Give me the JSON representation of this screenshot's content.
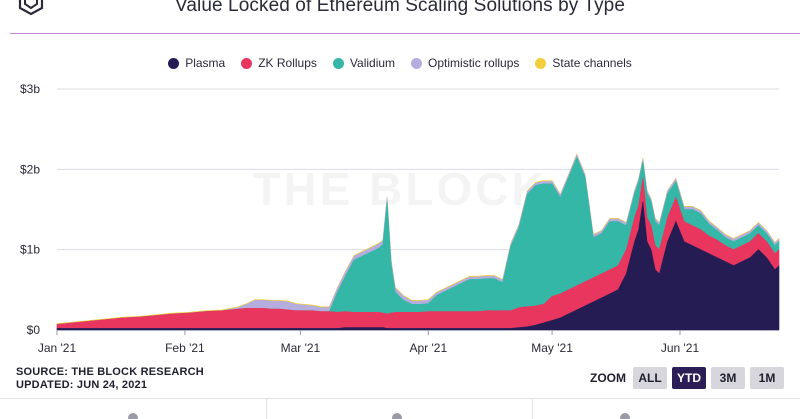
{
  "header": {
    "title": "Value Locked of Ethereum Scaling Solutions by Type",
    "logo_icon": "the-block-cube-icon"
  },
  "watermark": "THE BLOCK",
  "source": {
    "line1": "SOURCE: THE BLOCK RESEARCH",
    "line2": "UPDATED: JUN 24, 2021"
  },
  "zoom": {
    "label": "ZOOM",
    "buttons": [
      {
        "label": "ALL",
        "active": false
      },
      {
        "label": "YTD",
        "active": true
      },
      {
        "label": "3M",
        "active": false
      },
      {
        "label": "1M",
        "active": false
      }
    ]
  },
  "chart_data": {
    "type": "area",
    "stacked": true,
    "title": "Value Locked of Ethereum Scaling Solutions by Type",
    "xlabel": "",
    "ylabel": "",
    "ylim": [
      0,
      3
    ],
    "y_unit": "billion USD",
    "yticks": [
      0,
      1,
      2,
      3
    ],
    "ytick_labels": [
      "$0",
      "$1b",
      "$2b",
      "$3b"
    ],
    "xlim": [
      0,
      175
    ],
    "x_ticks": [
      {
        "label": "Jan '21",
        "day": 0
      },
      {
        "label": "Feb '21",
        "day": 31
      },
      {
        "label": "Mar '21",
        "day": 59
      },
      {
        "label": "Apr '21",
        "day": 90
      },
      {
        "label": "May '21",
        "day": 120
      },
      {
        "label": "Jun '21",
        "day": 151
      }
    ],
    "legend_position": "top-center",
    "grid": "horizontal",
    "x": [
      0,
      4,
      8,
      12,
      16,
      20,
      24,
      28,
      32,
      36,
      40,
      44,
      46,
      48,
      50,
      52,
      54,
      56,
      58,
      60,
      62,
      64,
      66,
      68,
      70,
      72,
      74,
      76,
      78,
      79,
      80,
      81,
      82,
      84,
      86,
      88,
      90,
      92,
      96,
      100,
      102,
      104,
      106,
      108,
      110,
      112,
      114,
      116,
      118,
      120,
      122,
      124,
      126,
      128,
      130,
      132,
      134,
      136,
      138,
      140,
      141,
      142,
      143,
      144,
      145,
      146,
      148,
      150,
      152,
      154,
      156,
      158,
      160,
      162,
      164,
      166,
      168,
      170,
      172,
      174,
      175
    ],
    "series": [
      {
        "name": "Plasma",
        "color": "#261c54",
        "values": [
          0.02,
          0.02,
          0.02,
          0.02,
          0.02,
          0.02,
          0.02,
          0.02,
          0.02,
          0.02,
          0.02,
          0.02,
          0.02,
          0.02,
          0.02,
          0.02,
          0.02,
          0.02,
          0.02,
          0.02,
          0.02,
          0.02,
          0.02,
          0.02,
          0.03,
          0.03,
          0.03,
          0.03,
          0.03,
          0.03,
          0.02,
          0.02,
          0.02,
          0.02,
          0.02,
          0.02,
          0.02,
          0.02,
          0.02,
          0.02,
          0.02,
          0.02,
          0.02,
          0.02,
          0.02,
          0.03,
          0.04,
          0.06,
          0.09,
          0.12,
          0.15,
          0.2,
          0.25,
          0.3,
          0.35,
          0.4,
          0.45,
          0.5,
          0.7,
          1.1,
          1.25,
          1.6,
          1.1,
          1.0,
          0.75,
          0.7,
          1.1,
          1.35,
          1.1,
          1.05,
          1.0,
          0.95,
          0.9,
          0.85,
          0.8,
          0.85,
          0.9,
          1.0,
          0.9,
          0.75,
          0.8
        ]
      },
      {
        "name": "ZK Rollups",
        "color": "#e8365e",
        "values": [
          0.05,
          0.07,
          0.09,
          0.11,
          0.13,
          0.14,
          0.16,
          0.18,
          0.19,
          0.21,
          0.22,
          0.24,
          0.25,
          0.25,
          0.25,
          0.24,
          0.24,
          0.23,
          0.22,
          0.22,
          0.22,
          0.21,
          0.21,
          0.2,
          0.2,
          0.19,
          0.19,
          0.19,
          0.19,
          0.18,
          0.18,
          0.19,
          0.2,
          0.2,
          0.2,
          0.2,
          0.21,
          0.21,
          0.21,
          0.21,
          0.21,
          0.22,
          0.22,
          0.22,
          0.22,
          0.25,
          0.25,
          0.24,
          0.23,
          0.3,
          0.3,
          0.3,
          0.3,
          0.3,
          0.3,
          0.3,
          0.3,
          0.3,
          0.3,
          0.3,
          0.3,
          0.3,
          0.3,
          0.3,
          0.3,
          0.3,
          0.3,
          0.3,
          0.25,
          0.25,
          0.25,
          0.22,
          0.22,
          0.2,
          0.2,
          0.2,
          0.2,
          0.2,
          0.2,
          0.2,
          0.2
        ]
      },
      {
        "name": "Validium",
        "color": "#35b7a7",
        "values": [
          0.0,
          0.0,
          0.0,
          0.0,
          0.0,
          0.0,
          0.0,
          0.0,
          0.0,
          0.0,
          0.0,
          0.0,
          0.0,
          0.0,
          0.0,
          0.0,
          0.0,
          0.0,
          0.0,
          0.0,
          0.0,
          0.0,
          0.0,
          0.25,
          0.45,
          0.65,
          0.7,
          0.75,
          0.8,
          0.85,
          1.4,
          0.6,
          0.25,
          0.15,
          0.1,
          0.1,
          0.1,
          0.2,
          0.3,
          0.4,
          0.4,
          0.4,
          0.4,
          0.35,
          0.8,
          1.0,
          1.4,
          1.5,
          1.5,
          1.4,
          1.2,
          1.4,
          1.6,
          1.3,
          0.5,
          0.5,
          0.6,
          0.55,
          0.3,
          0.3,
          0.3,
          0.2,
          0.3,
          0.3,
          0.3,
          0.3,
          0.3,
          0.2,
          0.15,
          0.2,
          0.2,
          0.15,
          0.12,
          0.1,
          0.1,
          0.1,
          0.1,
          0.1,
          0.1,
          0.1,
          0.1
        ]
      },
      {
        "name": "Optimistic rollups",
        "color": "#b6addf",
        "values": [
          0.0,
          0.0,
          0.0,
          0.0,
          0.0,
          0.0,
          0.0,
          0.0,
          0.0,
          0.0,
          0.0,
          0.02,
          0.05,
          0.1,
          0.1,
          0.1,
          0.1,
          0.1,
          0.08,
          0.07,
          0.06,
          0.05,
          0.05,
          0.05,
          0.05,
          0.05,
          0.05,
          0.05,
          0.05,
          0.05,
          0.05,
          0.05,
          0.05,
          0.05,
          0.04,
          0.04,
          0.04,
          0.03,
          0.03,
          0.03,
          0.03,
          0.03,
          0.03,
          0.03,
          0.03,
          0.03,
          0.03,
          0.03,
          0.03,
          0.03,
          0.03,
          0.03,
          0.03,
          0.03,
          0.03,
          0.03,
          0.03,
          0.03,
          0.03,
          0.03,
          0.03,
          0.03,
          0.03,
          0.03,
          0.03,
          0.03,
          0.03,
          0.03,
          0.03,
          0.03,
          0.03,
          0.03,
          0.03,
          0.03,
          0.03,
          0.03,
          0.03,
          0.03,
          0.03,
          0.03,
          0.03
        ]
      },
      {
        "name": "State channels",
        "color": "#f2cf3b",
        "values": [
          0.01,
          0.01,
          0.01,
          0.01,
          0.01,
          0.01,
          0.01,
          0.01,
          0.01,
          0.01,
          0.01,
          0.01,
          0.01,
          0.01,
          0.01,
          0.01,
          0.01,
          0.01,
          0.01,
          0.01,
          0.01,
          0.01,
          0.01,
          0.01,
          0.01,
          0.01,
          0.01,
          0.01,
          0.01,
          0.01,
          0.01,
          0.01,
          0.01,
          0.01,
          0.01,
          0.01,
          0.01,
          0.01,
          0.01,
          0.01,
          0.01,
          0.01,
          0.01,
          0.01,
          0.01,
          0.01,
          0.01,
          0.01,
          0.01,
          0.01,
          0.01,
          0.01,
          0.01,
          0.01,
          0.01,
          0.01,
          0.01,
          0.01,
          0.01,
          0.01,
          0.01,
          0.01,
          0.01,
          0.01,
          0.01,
          0.01,
          0.01,
          0.01,
          0.01,
          0.01,
          0.01,
          0.01,
          0.01,
          0.01,
          0.01,
          0.01,
          0.01,
          0.01,
          0.01,
          0.01,
          0.01
        ]
      }
    ]
  }
}
